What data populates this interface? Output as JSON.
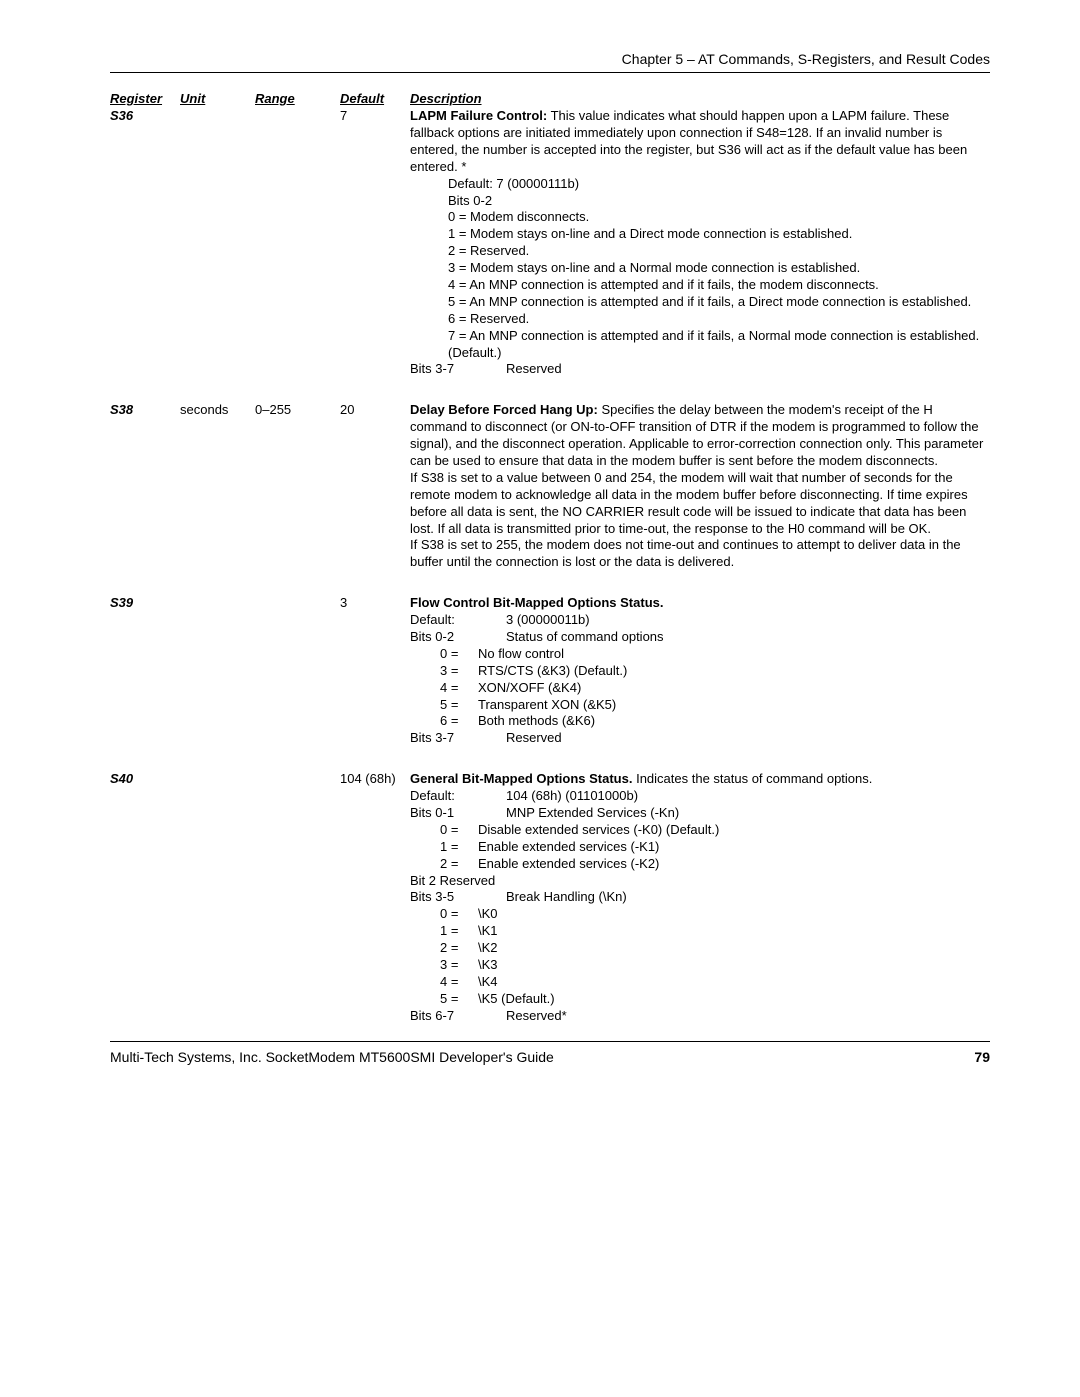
{
  "chapter_title": "Chapter 5 – AT Commands, S-Registers, and Result Codes",
  "headers": {
    "register": "Register",
    "unit": "Unit",
    "range": "Range",
    "default": "Default",
    "description": "Description"
  },
  "s36": {
    "reg": "S36",
    "unit": "",
    "range": "",
    "default": "7",
    "title": "LAPM Failure Control:",
    "intro": " This value indicates what should happen upon a LAPM failure. These fallback options are initiated immediately upon connection if S48=128. If an invalid number is entered, the number is accepted into the register, but S36 will act as if the default value has been entered. *",
    "default_line": "Default: 7 (00000111b)",
    "bits02": "Bits 0-2",
    "v0": "0 =  Modem disconnects.",
    "v1": "1 =  Modem stays on-line and a Direct mode connection is established.",
    "v2": "2 =  Reserved.",
    "v3": "3 =  Modem stays on-line and a Normal mode connection is established.",
    "v4": "4 =  An MNP connection is attempted and if it fails, the modem disconnects.",
    "v5": "5 =  An MNP connection is attempted and if it fails, a Direct mode connection is established.",
    "v6": "6 =  Reserved.",
    "v7": "7 =  An MNP connection is attempted and if it fails, a Normal mode connection is established. (Default.)",
    "bits37": "Bits 3-7",
    "bits37v": "Reserved"
  },
  "s38": {
    "reg": "S38",
    "unit": "seconds",
    "range": "0–255",
    "default": "20",
    "title": "Delay Before Forced Hang Up:",
    "p1": " Specifies the delay between the modem's receipt of the H command to disconnect (or ON-to-OFF transition of DTR if the modem is programmed to follow the signal), and the disconnect operation. Applicable to error-correction connection only. This parameter can be used to ensure that data in the modem buffer is sent before the modem disconnects.",
    "p2": "If S38 is set to a value between 0 and 254, the modem will wait that number of seconds for the remote modem to acknowledge all data in the modem buffer before disconnecting. If time expires before all data is sent, the NO CARRIER result code will be issued to indicate that data has been lost. If all data is transmitted prior to time-out, the response to the H0 command will be OK.",
    "p3": "If S38 is set to 255, the modem does not time-out and continues to attempt to deliver data in the buffer until the connection is lost or the data is delivered."
  },
  "s39": {
    "reg": "S39",
    "default": "3",
    "title": "Flow Control Bit-Mapped Options Status.",
    "def_k": "Default:",
    "def_v": "3 (00000011b)",
    "b02_k": "Bits 0-2",
    "b02_v": "Status of command options",
    "r0k": "0 =",
    "r0v": "No flow control",
    "r3k": "3 =",
    "r3v": "RTS/CTS (&K3) (Default.)",
    "r4k": "4 =",
    "r4v": "XON/XOFF (&K4)",
    "r5k": "5 =",
    "r5v": "Transparent XON (&K5)",
    "r6k": "6 =",
    "r6v": "Both methods (&K6)",
    "b37_k": "Bits 3-7",
    "b37_v": "Reserved"
  },
  "s40": {
    "reg": "S40",
    "default": "104 (68h)",
    "title": "General Bit-Mapped Options Status.",
    "tail": " Indicates the status of command options.",
    "def_k": "Default:",
    "def_v": "104 (68h) (01101000b)",
    "b01_k": "Bits 0-1",
    "b01_v": "MNP Extended Services (-Kn)",
    "r0k": "0 =",
    "r0v": "Disable extended services (-K0) (Default.)",
    "r1k": "1 =",
    "r1v": "Enable extended services (-K1)",
    "r2k": "2 =",
    "r2v": "Enable extended services (-K2)",
    "bit2": "Bit 2   Reserved",
    "b35_k": "Bits 3-5",
    "b35_v": "Break Handling (\\Kn)",
    "k0k": "0 =",
    "k0v": "\\K0",
    "k1k": "1 =",
    "k1v": "\\K1",
    "k2k": "2 =",
    "k2v": "\\K2",
    "k3k": "3 =",
    "k3v": "\\K3",
    "k4k": "4 =",
    "k4v": "\\K4",
    "k5k": "5 =",
    "k5v": "\\K5 (Default.)",
    "b67_k": "Bits 6-7",
    "b67_v": "Reserved*"
  },
  "footer": {
    "left": "Multi-Tech Systems, Inc. SocketModem MT5600SMI Developer's Guide",
    "page": "79"
  }
}
